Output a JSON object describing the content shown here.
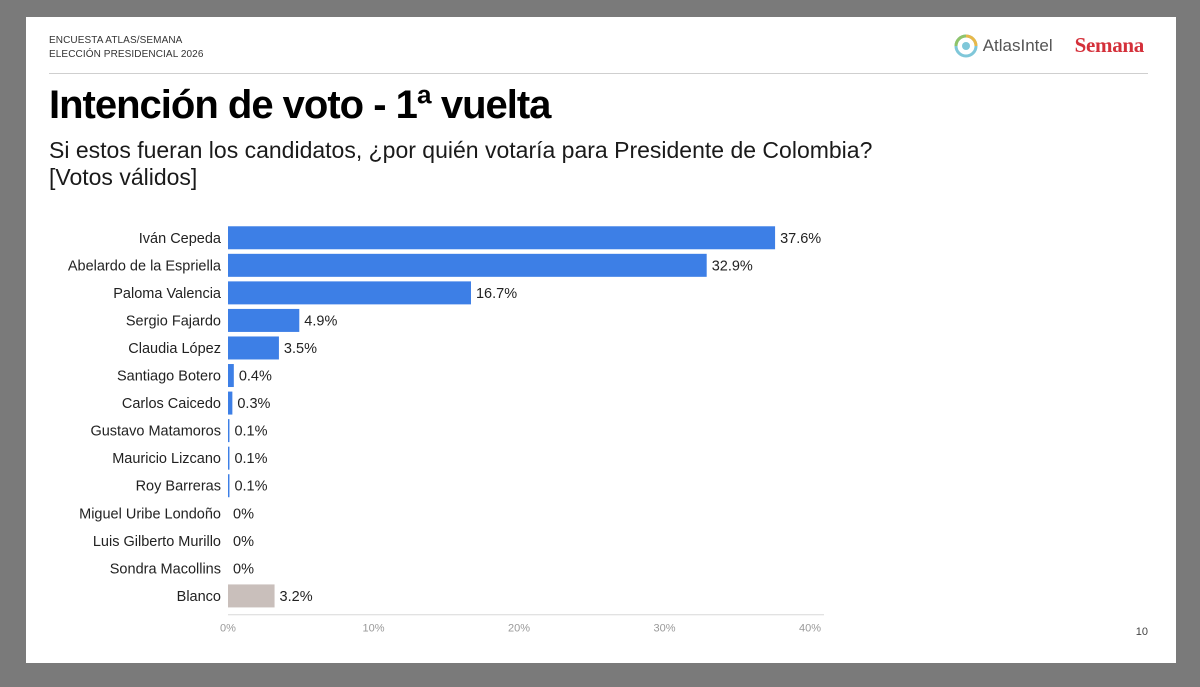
{
  "header": {
    "line1": "ENCUESTA ATLAS/SEMANA",
    "line2": "ELECCIÓN PRESIDENCIAL 2026",
    "atlas_logo_text": "AtlasIntel",
    "semana_logo_text": "Semana"
  },
  "title": "Intención de voto - 1ª vuelta",
  "subtitle_line1": "Si estos fueran los candidatos, ¿por quién votaría para Presidente de Colombia?",
  "subtitle_line2": "[Votos válidos]",
  "page_number": "10",
  "colors": {
    "bar_primary": "#3d7fe6",
    "bar_blank": "#c9bfbb",
    "semana_red": "#d4303a"
  },
  "chart_data": {
    "type": "bar",
    "orientation": "horizontal",
    "categories": [
      "Iván Cepeda",
      "Abelardo de la Espriella",
      "Paloma Valencia",
      "Sergio Fajardo",
      "Claudia López",
      "Santiago Botero",
      "Carlos Caicedo",
      "Gustavo Matamoros",
      "Mauricio Lizcano",
      "Roy Barreras",
      "Miguel Uribe Londoño",
      "Luis Gilberto Murillo",
      "Sondra Macollins",
      "Blanco"
    ],
    "values": [
      37.6,
      32.9,
      16.7,
      4.9,
      3.5,
      0.4,
      0.3,
      0.1,
      0.1,
      0.1,
      0,
      0,
      0,
      3.2
    ],
    "value_labels": [
      "37.6%",
      "32.9%",
      "16.7%",
      "4.9%",
      "3.5%",
      "0.4%",
      "0.3%",
      "0.1%",
      "0.1%",
      "0.1%",
      "0%",
      "0%",
      "0%",
      "3.2%"
    ],
    "xlim": [
      0,
      40
    ],
    "xticks": [
      0,
      10,
      20,
      30,
      40
    ],
    "xtick_labels": [
      "0%",
      "10%",
      "20%",
      "30%",
      "40%"
    ],
    "grid": false,
    "legend": "none"
  }
}
